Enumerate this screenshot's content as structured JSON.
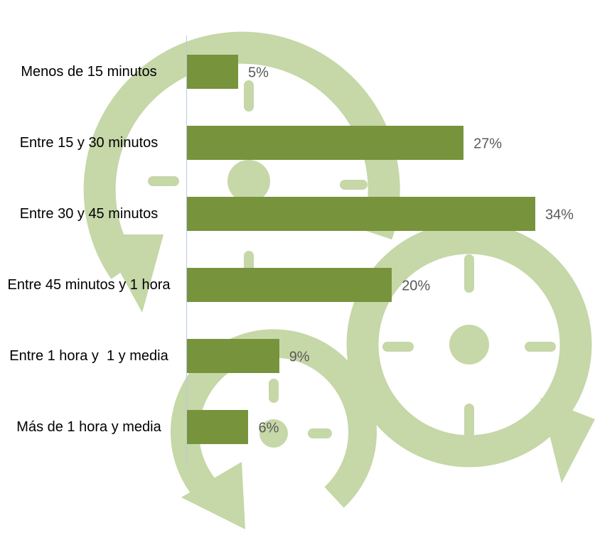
{
  "chart_data": {
    "type": "hbar",
    "categories": [
      "Menos de 15 minutos",
      "Entre 15 y 30 minutos",
      "Entre 30 y 45 minutos",
      "Entre 45 minutos y 1 hora",
      "Entre 1 hora y  1 y media",
      "Más de 1 hora y media"
    ],
    "values": [
      5,
      27,
      34,
      20,
      9,
      6
    ],
    "value_labels": [
      "5%",
      "27%",
      "34%",
      "20%",
      "9%",
      "6%"
    ],
    "color": "#77933c"
  }
}
